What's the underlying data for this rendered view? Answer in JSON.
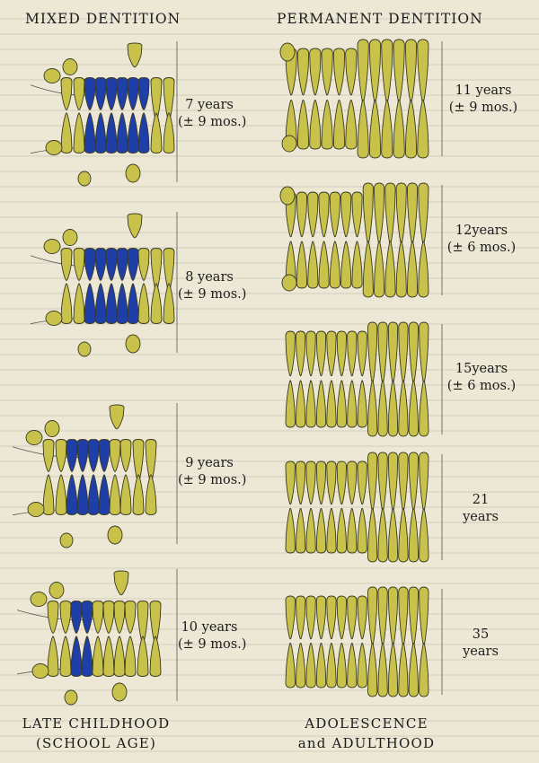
{
  "headers": {
    "mixed": "MIXED DENTITION",
    "permanent": "PERMANENT DENTITION"
  },
  "colors": {
    "permanent_tooth": "#c9c24a",
    "deciduous_tooth": "#1e3fa8",
    "outline": "#3a3a22",
    "background": "#ede8d6"
  },
  "left_stages": [
    {
      "age": "7 years",
      "range": "(± 9 mos.)"
    },
    {
      "age": "8 years",
      "range": "(± 9 mos.)"
    },
    {
      "age": "9 years",
      "range": "(± 9 mos.)"
    },
    {
      "age": "10 years",
      "range": "(± 9 mos.)"
    }
  ],
  "right_stages": [
    {
      "age": "11 years",
      "range": "(± 9 mos.)"
    },
    {
      "age": "12years",
      "range": "(± 6 mos.)"
    },
    {
      "age": "15years",
      "range": "(± 6 mos.)"
    },
    {
      "age": "21",
      "range": "years"
    },
    {
      "age": "35",
      "range": "years"
    }
  ],
  "footers": {
    "left_line1": "LATE CHILDHOOD",
    "left_line2": "(SCHOOL AGE)",
    "right_line1": "ADOLESCENCE",
    "right_line2": "and ADULTHOOD"
  }
}
